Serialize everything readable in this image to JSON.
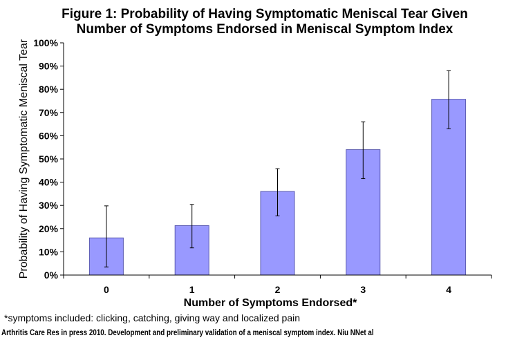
{
  "chart_data": {
    "type": "bar",
    "title_line1": "Figure 1: Probability of Having Symptomatic Meniscal Tear Given",
    "title_line2": "Number of Symptoms Endorsed in Meniscal Symptom Index",
    "xlabel": "Number of Symptoms Endorsed*",
    "ylabel": "Probability of Having Symptomatic Meniscal Tear",
    "categories": [
      "0",
      "1",
      "2",
      "3",
      "4"
    ],
    "values": [
      16,
      21.3,
      36,
      54,
      75.7
    ],
    "error_low": [
      3.5,
      11.7,
      25.5,
      41.5,
      63
    ],
    "error_high": [
      29.8,
      30.4,
      45.8,
      66,
      88
    ],
    "yticks": [
      "0%",
      "10%",
      "20%",
      "30%",
      "40%",
      "50%",
      "60%",
      "70%",
      "80%",
      "90%",
      "100%"
    ],
    "ylim": [
      0,
      100
    ],
    "grid": false,
    "bar_color": "#9999ff",
    "bar_stroke": "#5a5ab0"
  },
  "footnote": "*symptoms included: clicking, catching, giving way and localized pain",
  "citation": "Arthritis Care Res in press 2010. Development and preliminary validation of a meniscal symptom index. Niu NNet al"
}
